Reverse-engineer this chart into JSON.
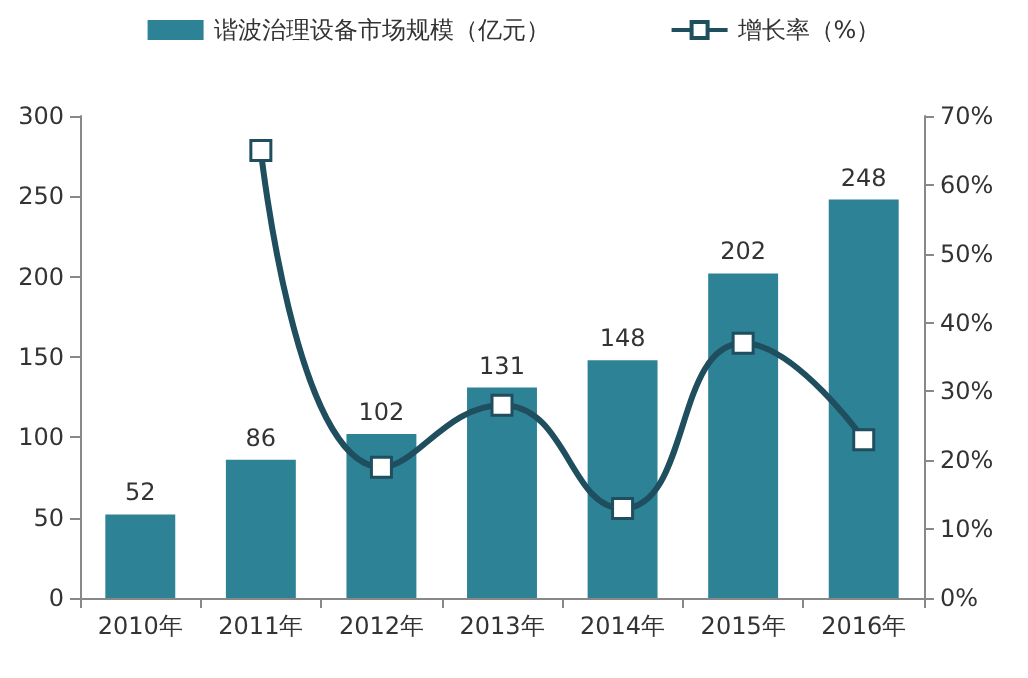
{
  "chart_data": {
    "type": "bar",
    "categories": [
      "2010年",
      "2011年",
      "2012年",
      "2013年",
      "2014年",
      "2015年",
      "2016年"
    ],
    "series": [
      {
        "name": "谐波治理设备市场规模（亿元）",
        "color": "#2e8296",
        "values": [
          52,
          86,
          102,
          131,
          148,
          202,
          248
        ],
        "data_labels": true
      },
      {
        "name": "增长率（%）",
        "type": "line",
        "axis": "y2",
        "color": "#1f4e5f",
        "marker": "square",
        "values": [
          null,
          65,
          19,
          28,
          13,
          37,
          23
        ]
      }
    ],
    "ylim": [
      0,
      300
    ],
    "yticks": [
      0,
      50,
      100,
      150,
      200,
      250,
      300
    ],
    "y2lim": [
      0,
      70
    ],
    "y2ticks": [
      {
        "value": 0,
        "label": "0%"
      },
      {
        "value": 10,
        "label": "10%"
      },
      {
        "value": 20,
        "label": "20%"
      },
      {
        "value": 30,
        "label": "30%"
      },
      {
        "value": 40,
        "label": "40%"
      },
      {
        "value": 50,
        "label": "50%"
      },
      {
        "value": 60,
        "label": "60%"
      },
      {
        "value": 70,
        "label": "70%"
      }
    ],
    "grid": false,
    "legend": "top"
  }
}
